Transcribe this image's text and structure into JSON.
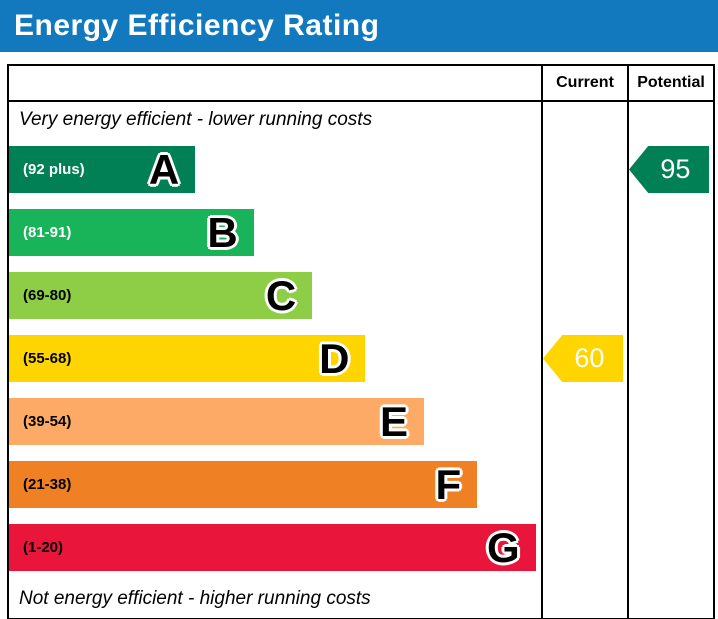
{
  "title": "Energy Efficiency Rating",
  "title_bar_color": "#1279be",
  "table": {
    "header": {
      "current": "Current",
      "potential": "Potential"
    }
  },
  "captions": {
    "top": "Very energy efficient - lower running costs",
    "bottom": "Not energy efficient - higher running costs"
  },
  "chart_data": {
    "type": "bar",
    "title": "Energy Efficiency Rating",
    "bands": [
      {
        "letter": "A",
        "range": "(92 plus)",
        "color": "#008054",
        "label_color": "#ffffff",
        "width_pct": 35
      },
      {
        "letter": "B",
        "range": "(81-91)",
        "color": "#19b459",
        "label_color": "#ffffff",
        "width_pct": 46
      },
      {
        "letter": "C",
        "range": "(69-80)",
        "color": "#8dce46",
        "label_color": "#000000",
        "width_pct": 57
      },
      {
        "letter": "D",
        "range": "(55-68)",
        "color": "#ffd500",
        "label_color": "#000000",
        "width_pct": 67
      },
      {
        "letter": "E",
        "range": "(39-54)",
        "color": "#fcaa65",
        "label_color": "#000000",
        "width_pct": 78
      },
      {
        "letter": "F",
        "range": "(21-38)",
        "color": "#ef8023",
        "label_color": "#000000",
        "width_pct": 88
      },
      {
        "letter": "G",
        "range": "(1-20)",
        "color": "#e9153b",
        "label_color": "#000000",
        "width_pct": 99
      }
    ],
    "current": {
      "value": 60,
      "band": "D",
      "band_index": 3,
      "color": "#ffd500"
    },
    "potential": {
      "value": 95,
      "band": "A",
      "band_index": 0,
      "color": "#008054"
    }
  }
}
